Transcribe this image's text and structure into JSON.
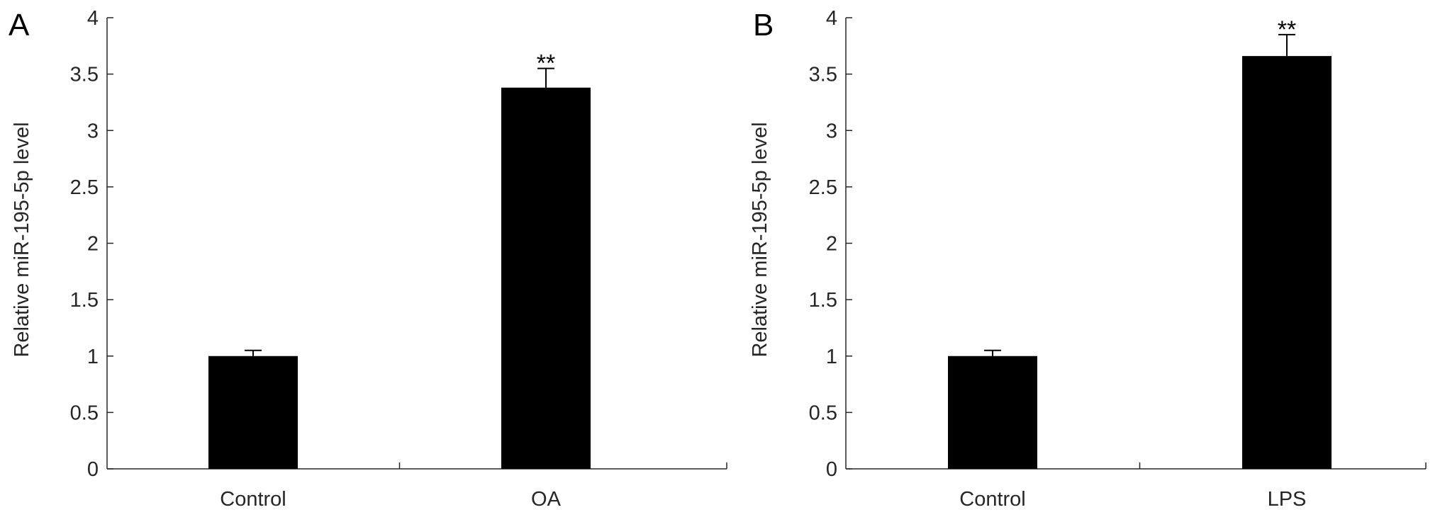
{
  "chart_data": [
    {
      "type": "bar",
      "panel": "A",
      "categories": [
        "Control",
        "OA"
      ],
      "values": [
        1.0,
        3.38
      ],
      "errors": [
        0.05,
        0.17
      ],
      "significance": [
        "",
        "**"
      ],
      "xlabel": "",
      "ylabel": "Relative miR-195-5p level",
      "ylim": [
        0,
        4
      ],
      "yticks": [
        "0",
        "0.5",
        "1",
        "1.5",
        "2",
        "2.5",
        "3",
        "3.5",
        "4"
      ],
      "bar_color": "#000000",
      "grid": false,
      "legend": "none"
    },
    {
      "type": "bar",
      "panel": "B",
      "categories": [
        "Control",
        "LPS"
      ],
      "values": [
        1.0,
        3.66
      ],
      "errors": [
        0.05,
        0.19
      ],
      "significance": [
        "",
        "**"
      ],
      "xlabel": "",
      "ylabel": "Relative miR-195-5p level",
      "ylim": [
        0,
        4
      ],
      "yticks": [
        "0",
        "0.5",
        "1",
        "1.5",
        "2",
        "2.5",
        "3",
        "3.5",
        "4"
      ],
      "bar_color": "#000000",
      "grid": false,
      "legend": "none"
    }
  ]
}
